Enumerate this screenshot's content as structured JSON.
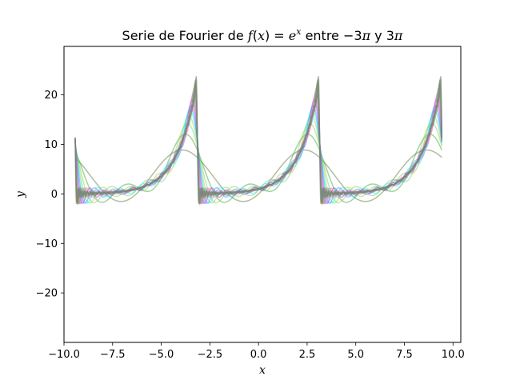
{
  "chart_data": {
    "type": "line",
    "title": {
      "prefix": "Serie de Fourier de ",
      "fx": "f",
      "open": "(",
      "xvar": "x",
      "close": ")",
      "eq": " = ",
      "base": "e",
      "exp": "x",
      "mid": " entre −3",
      "pi1": "π",
      "and": " y 3",
      "pi2": "π"
    },
    "xlabel": "x",
    "ylabel": "y",
    "xlim": [
      -10.0,
      10.4
    ],
    "ylim": [
      -30.0,
      29.8
    ],
    "xticks": [
      -10.0,
      -7.5,
      -5.0,
      -2.5,
      0.0,
      2.5,
      5.0,
      7.5,
      10.0
    ],
    "xtick_labels": [
      "−10.0",
      "−7.5",
      "−5.0",
      "−2.5",
      "0.0",
      "2.5",
      "5.0",
      "7.5",
      "10.0"
    ],
    "yticks": [
      -20,
      -10,
      0,
      10,
      20
    ],
    "ytick_labels": [
      "−20",
      "−10",
      "0",
      "10",
      "20"
    ],
    "x_domain": [
      -9.42477796,
      9.42477796
    ],
    "function": "e^x",
    "period": 6.28318531,
    "series_terms": [
      1,
      2,
      3,
      4,
      5,
      6,
      8,
      10,
      12,
      15,
      20,
      25,
      30,
      40,
      50
    ],
    "series_colors": [
      "#556b2f",
      "#2ca02c",
      "#7ccd4c",
      "#9acd32",
      "#00ffff",
      "#1e90ff",
      "#8a2be2",
      "#da70d6",
      "#ff69b4",
      "#20b2aa",
      "#b8860b",
      "#cd5c5c",
      "#4682b4",
      "#6b8e23",
      "#708090"
    ],
    "series_opacity": 0.45,
    "grid": false,
    "legend": "none"
  }
}
